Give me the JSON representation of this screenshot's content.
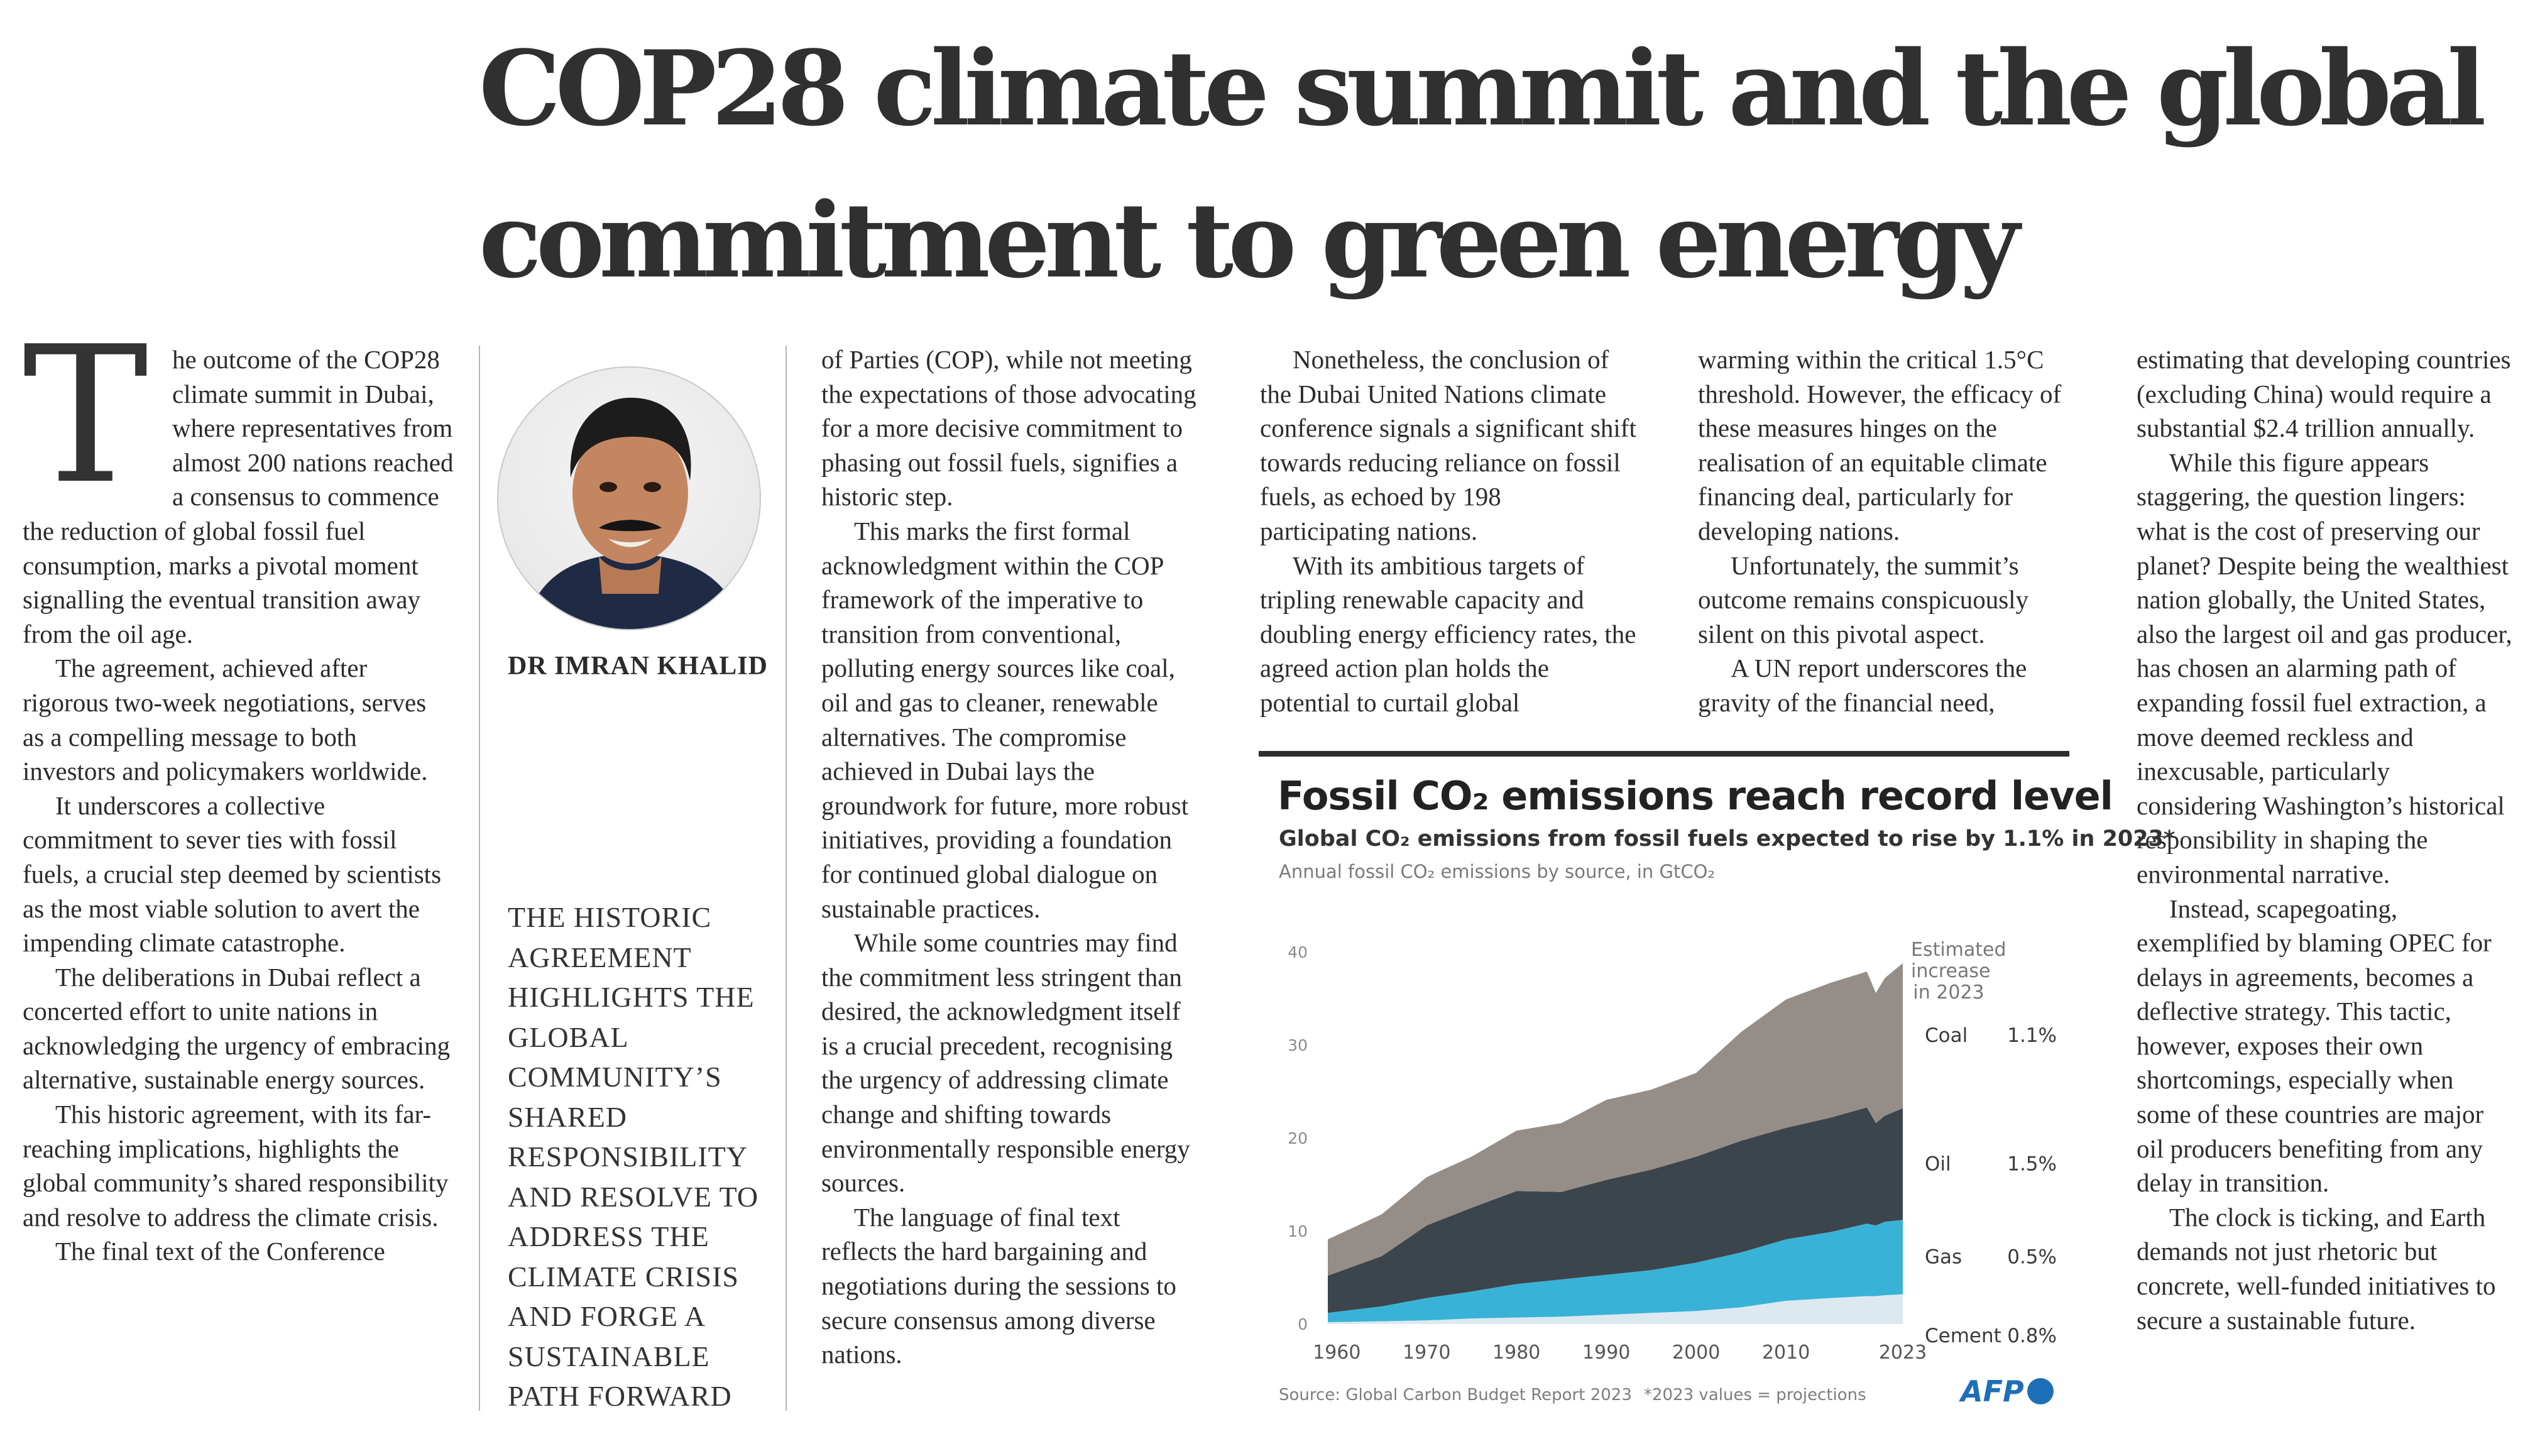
{
  "headline": {
    "line1": "COP28 climate summit and the global",
    "line2": "commitment to green energy"
  },
  "article": {
    "drop_cap": "T",
    "col1": {
      "p1_lead": "he outcome of the COP28 climate summit in Dubai, where representatives from almost 200 nations reached a consensus to commence the reduction of global fossil fuel consumption, marks a pivotal moment signalling the eventual transition away from the oil age.",
      "p2": "The agreement, achieved after rigorous two-week negotiations, serves as a compelling message to both investors and policymakers worldwide.",
      "p3": "It underscores a collective commitment to sever ties with fossil fuels, a crucial step deemed by scientists as the most viable solution to avert the impending climate catastrophe.",
      "p4": "The deliberations in Dubai reflect a concerted effort to unite nations in acknowledging the urgency of embracing alternative, sustainable energy sources.",
      "p5": "This historic agreement, with its far-reaching implications, highlights the global community’s shared responsibility and resolve to address the climate crisis.",
      "p6": "The final text of the Conference"
    },
    "author": {
      "name": "DR IMRAN KHALID"
    },
    "pullquote": "THE HISTORIC AGREEMENT HIGHLIGHTS THE GLOBAL COMMUNITY’S SHARED RESPONSIBILITY AND RESOLVE TO ADDRESS THE CLIMATE CRISIS AND FORGE A SUSTAINABLE PATH FORWARD",
    "col3": {
      "p1": "of Parties (COP), while not meeting the expectations of those advocating for a more decisive commitment to phasing out fossil fuels, signifies a historic step.",
      "p2": "This marks the first formal acknowledgment within the COP framework of the imperative to transition from conventional, polluting energy sources like coal, oil and gas to cleaner, renewable alternatives. The compromise achieved in Dubai lays the groundwork for future, more robust initiatives, providing a foundation for continued global dialogue on sustainable practices.",
      "p3": "While some countries may find the commitment less stringent than desired, the acknowledgment itself is a crucial precedent, recognising the urgency of addressing climate change and shifting towards environmentally responsible energy sources.",
      "p4": "The language of final text reflects the hard bargaining and negotiations during the sessions to secure consensus among diverse nations."
    },
    "col4": {
      "p1": "Nonetheless, the conclusion of the Dubai United Nations climate conference signals a significant shift towards reducing reliance on fossil fuels, as echoed by 198 participating nations.",
      "p2": "With its ambitious targets of tripling renewable capacity and doubling energy efficiency rates, the agreed action plan holds the potential to curtail global"
    },
    "col5": {
      "p1": "warming within the critical 1.5°C threshold. However, the efficacy of these measures hinges on the realisation of an equitable climate financing deal, particularly for developing nations.",
      "p2": "Unfortunately, the summit’s outcome remains conspicuously silent on this pivotal aspect.",
      "p3": "A UN report underscores the gravity of the financial need,"
    },
    "col6": {
      "p1": "estimating that developing countries (excluding China) would require a substantial $2.4 trillion annually.",
      "p2": "While this figure appears staggering, the question lingers: what is the cost of preserving our planet? Despite being the wealthiest nation globally, the United States, also the largest oil and gas producer, has chosen an alarming path of expanding fossil fuel extraction, a move deemed reckless and inexcusable, particularly considering Washington’s historical responsibility in shaping the environmental narrative.",
      "p3": "Instead, scapegoating, exemplified by blaming OPEC for delays in agreements, becomes a deflective strategy. This tactic, however, exposes their own shortcomings, especially when some of these countries are major oil producers benefiting from any delay in transition.",
      "p4": "The clock is ticking, and Earth demands not just rhetoric but concrete, well-funded initiatives to secure a sustainable future."
    }
  },
  "chart_data": {
    "type": "area",
    "title": "Fossil CO₂ emissions reach record level",
    "subtitle": "Global CO₂ emissions from fossil fuels expected to rise by 1.1% in 2023*",
    "ylabel": "Annual fossil CO₂ emissions by source, in GtCO₂",
    "ylim": [
      0,
      40
    ],
    "yticks": [
      "0",
      "10",
      "20",
      "30",
      "40"
    ],
    "xticks": [
      "1960",
      "1970",
      "1980",
      "1990",
      "2000",
      "2010",
      "2023"
    ],
    "stacked": true,
    "x": [
      1959,
      1965,
      1970,
      1975,
      1980,
      1985,
      1990,
      1995,
      2000,
      2005,
      2010,
      2015,
      2019,
      2020,
      2021,
      2023
    ],
    "series": [
      {
        "name": "Cement",
        "color": "#dce9f1",
        "values": [
          0.2,
          0.3,
          0.4,
          0.6,
          0.7,
          0.8,
          1.0,
          1.2,
          1.4,
          1.8,
          2.5,
          2.8,
          3.0,
          3.0,
          3.1,
          3.2
        ]
      },
      {
        "name": "Gas",
        "color": "#38b3d7",
        "values": [
          1.0,
          1.6,
          2.4,
          2.9,
          3.6,
          4.0,
          4.3,
          4.6,
          5.2,
          5.9,
          6.6,
          7.1,
          7.8,
          7.6,
          7.9,
          8.0
        ]
      },
      {
        "name": "Oil",
        "color": "#3d454c",
        "values": [
          4.0,
          5.4,
          7.8,
          9.0,
          10.0,
          9.4,
          10.2,
          10.8,
          11.4,
          12.0,
          12.0,
          12.3,
          12.5,
          11.0,
          11.4,
          12.0
        ]
      },
      {
        "name": "Coal",
        "color": "#958e88",
        "values": [
          3.9,
          4.5,
          5.2,
          5.5,
          6.5,
          7.4,
          8.6,
          8.6,
          9.0,
          11.7,
          13.8,
          14.5,
          14.6,
          14.0,
          14.8,
          15.6
        ]
      }
    ],
    "estimated_increase_label": "Estimated increase in 2023",
    "increases": [
      {
        "name": "Coal",
        "value": "1.1%"
      },
      {
        "name": "Oil",
        "value": "1.5%"
      },
      {
        "name": "Gas",
        "value": "0.5%"
      },
      {
        "name": "Cement",
        "value": "0.8%"
      }
    ],
    "source": "Source: Global Carbon Budget Report 2023",
    "note": "*2023 values = projections",
    "credit": "AFP"
  }
}
